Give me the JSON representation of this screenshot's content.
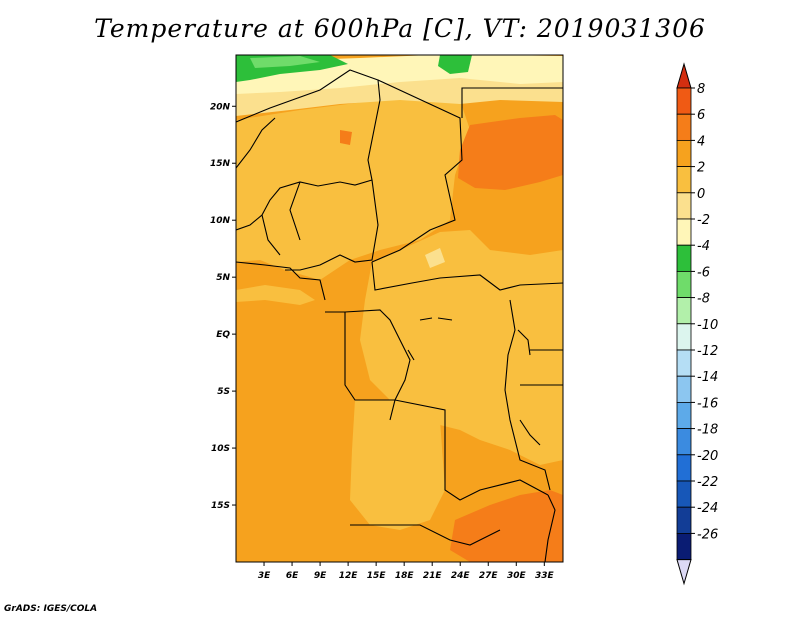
{
  "title": "Temperature at 600hPa [C], VT: 2019031306",
  "credit": "GrADS: IGES/COLA",
  "map": {
    "variable": "Temperature",
    "level": "600hPa",
    "units": "C",
    "valid_time": "2019031306",
    "lon_range": [
      0,
      35
    ],
    "lat_range": [
      -20,
      24.5
    ],
    "x_ticks": [
      {
        "value": 3,
        "label": "3E"
      },
      {
        "value": 6,
        "label": "6E"
      },
      {
        "value": 9,
        "label": "9E"
      },
      {
        "value": 12,
        "label": "12E"
      },
      {
        "value": 15,
        "label": "15E"
      },
      {
        "value": 18,
        "label": "18E"
      },
      {
        "value": 21,
        "label": "21E"
      },
      {
        "value": 24,
        "label": "24E"
      },
      {
        "value": 27,
        "label": "27E"
      },
      {
        "value": 30,
        "label": "30E"
      },
      {
        "value": 33,
        "label": "33E"
      }
    ],
    "y_ticks": [
      {
        "value": 20,
        "label": "20N"
      },
      {
        "value": 15,
        "label": "15N"
      },
      {
        "value": 10,
        "label": "10N"
      },
      {
        "value": 5,
        "label": "5N"
      },
      {
        "value": 0,
        "label": "EQ"
      },
      {
        "value": -5,
        "label": "5S"
      },
      {
        "value": -10,
        "label": "10S"
      },
      {
        "value": -15,
        "label": "15S"
      }
    ],
    "background_color": "#f6a21e"
  },
  "colorbar": {
    "levels": [
      "8",
      "6",
      "4",
      "2",
      "0",
      "-2",
      "-4",
      "-6",
      "-8",
      "-10",
      "-12",
      "-14",
      "-16",
      "-18",
      "-20",
      "-22",
      "-24",
      "-26"
    ],
    "colors": [
      "#d42e10",
      "#f05a14",
      "#f57d19",
      "#f6a21e",
      "#f9bf3f",
      "#fbe08e",
      "#fff6b8",
      "#2dbf3a",
      "#6fdc6a",
      "#b2f0aa",
      "#dcf5ee",
      "#b5def5",
      "#8cc6f0",
      "#5daae9",
      "#3b8be0",
      "#216fd6",
      "#1757b8",
      "#123d96",
      "#0a1c73",
      "#dcd9f5"
    ],
    "arrow_up_color": "#d42e10",
    "arrow_down_color": "#dcd9f5"
  }
}
